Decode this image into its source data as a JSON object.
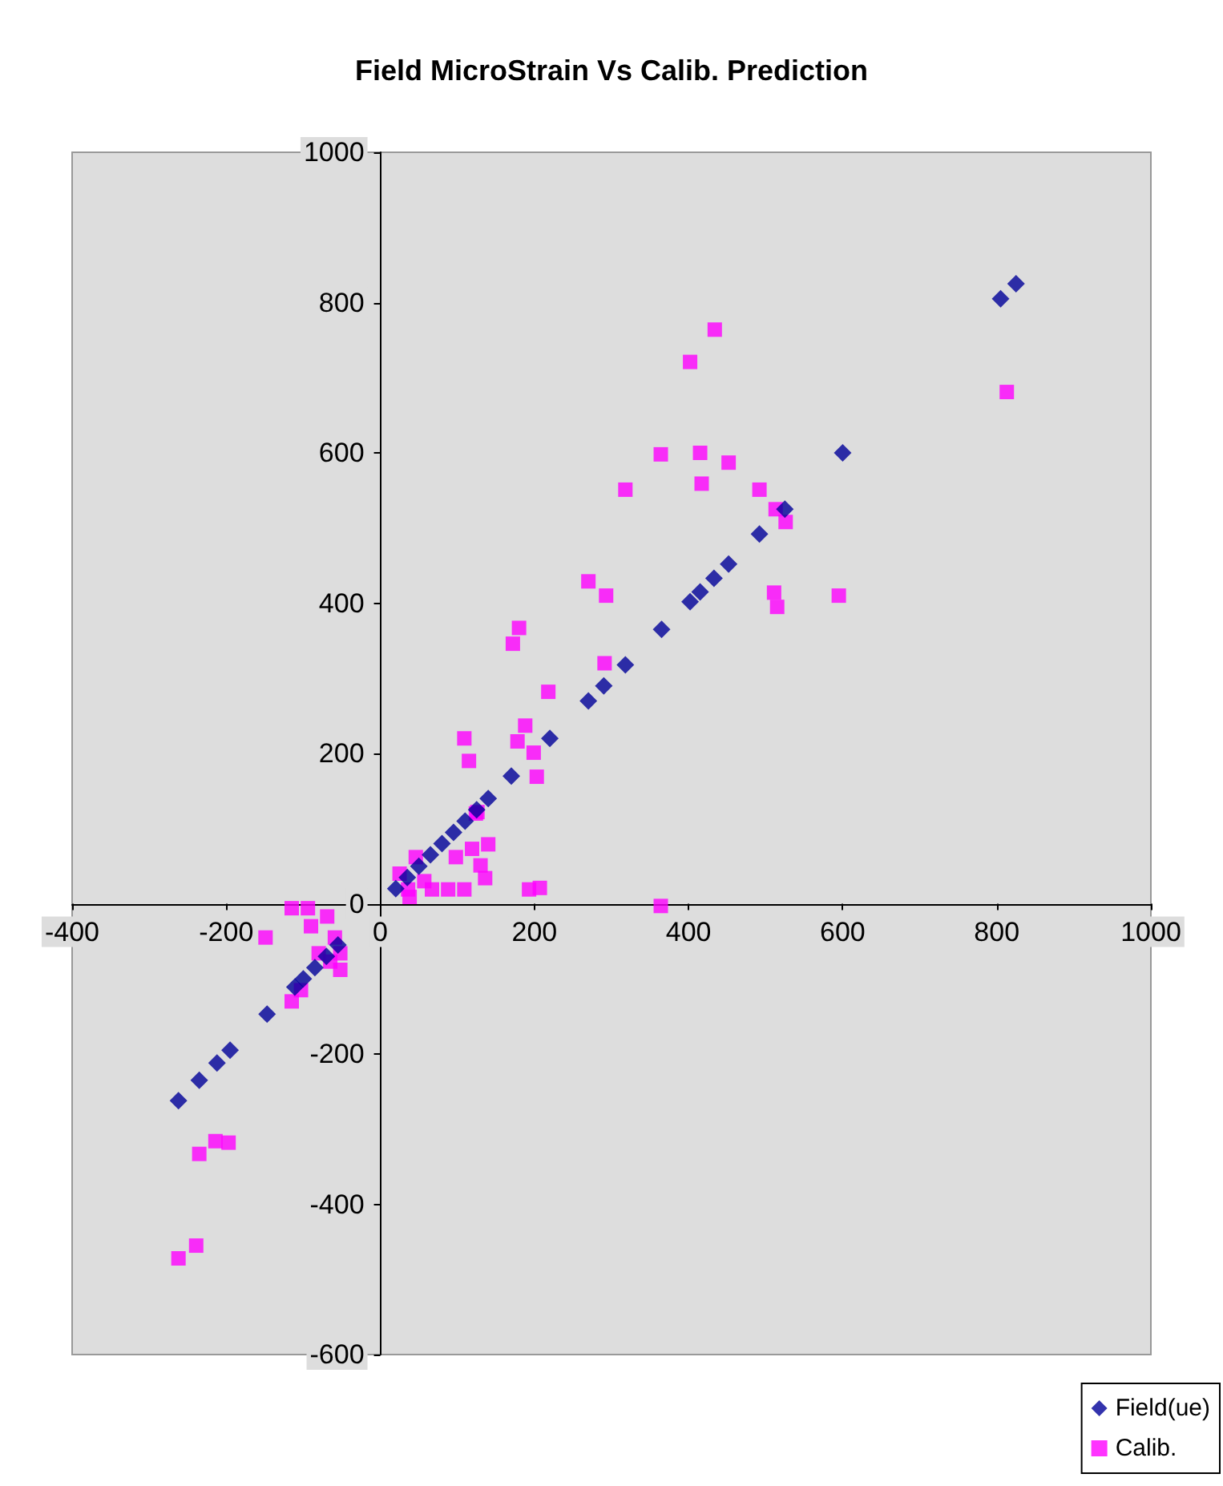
{
  "chart_data": {
    "type": "scatter",
    "title": "Field MicroStrain Vs Calib. Prediction",
    "xlim": [
      -400,
      1000
    ],
    "xticks": [
      -400,
      -200,
      0,
      200,
      400,
      600,
      800,
      1000
    ],
    "ylim": [
      -600,
      1000
    ],
    "yticks": [
      -600,
      -400,
      -200,
      0,
      200,
      400,
      600,
      800,
      1000
    ],
    "legend": "bottom right",
    "series": [
      {
        "name": "Field(ue)",
        "color": "#000099",
        "marker": "diamond",
        "x": [
          -262,
          -235,
          -212,
          -195,
          -147,
          -111,
          -100,
          -85,
          -70,
          -55,
          20,
          35,
          50,
          65,
          80,
          95,
          110,
          125,
          140,
          170,
          220,
          270,
          290,
          318,
          365,
          402,
          415,
          433,
          452,
          492,
          525,
          600,
          805,
          825
        ],
        "values": [
          -262,
          -235,
          -212,
          -195,
          -147,
          -111,
          -100,
          -85,
          -70,
          -55,
          20,
          35,
          50,
          65,
          80,
          95,
          110,
          125,
          140,
          170,
          220,
          270,
          290,
          318,
          365,
          402,
          415,
          433,
          452,
          492,
          525,
          600,
          805,
          825
        ]
      },
      {
        "name": "Calib.",
        "color": "#ff00ff",
        "marker": "square",
        "x": [
          -262,
          -239,
          -235,
          -214,
          -197,
          -149,
          -115,
          -94,
          -115,
          -103,
          -90,
          -69,
          -59,
          -52,
          -52,
          -80,
          -65,
          25,
          36,
          46,
          57,
          38,
          67,
          88,
          109,
          98,
          119,
          140,
          130,
          136,
          124,
          109,
          115,
          172,
          218,
          291,
          188,
          178,
          199,
          203,
          126,
          193,
          207,
          434,
          402,
          364,
          415,
          452,
          417,
          318,
          492,
          513,
          526,
          270,
          293,
          511,
          515,
          595,
          180,
          813,
          364
        ],
        "values": [
          -472,
          -455,
          -333,
          -316,
          -318,
          -45,
          -6,
          -6,
          -130,
          -115,
          -30,
          -17,
          -45,
          -66,
          -88,
          -66,
          -77,
          40,
          19,
          62,
          30,
          9,
          19,
          19,
          19,
          62,
          73,
          79,
          51,
          34,
          120,
          220,
          190,
          346,
          282,
          320,
          237,
          216,
          201,
          169,
          122,
          19,
          21,
          764,
          721,
          598,
          600,
          587,
          559,
          551,
          551,
          525,
          508,
          429,
          410,
          414,
          395,
          410,
          367,
          681,
          -3
        ]
      }
    ]
  }
}
